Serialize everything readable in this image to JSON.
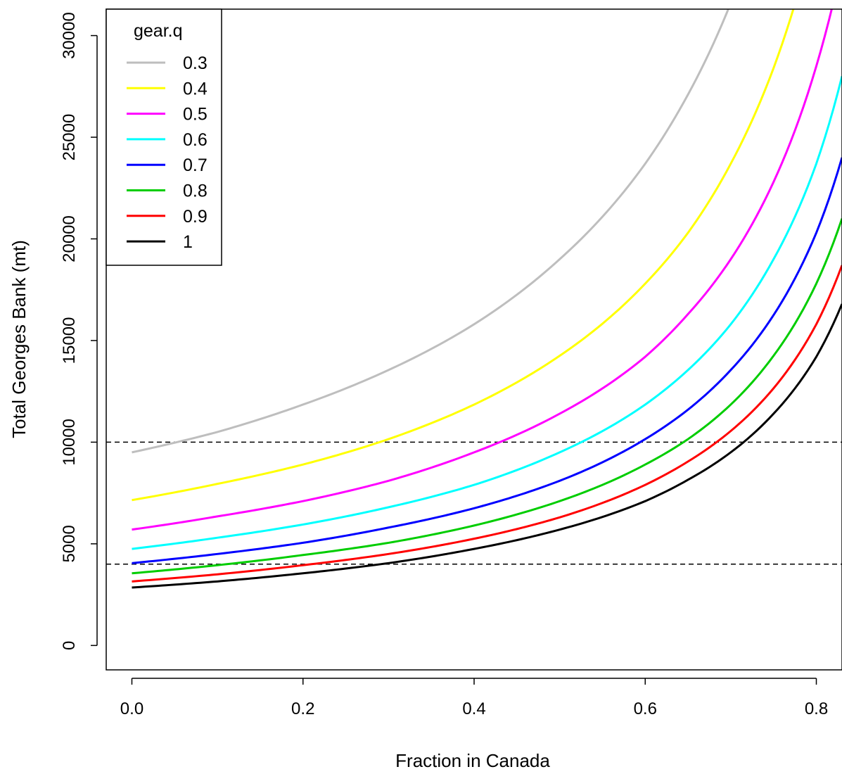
{
  "chart_data": {
    "type": "line",
    "title": "",
    "xlabel": "Fraction in Canada",
    "ylabel": "Total Georges Bank (mt)",
    "xlim": [
      -0.03,
      0.83
    ],
    "ylim": [
      -1200,
      31300
    ],
    "x_ticks": [
      0.0,
      0.2,
      0.4,
      0.6,
      0.8
    ],
    "x_tick_labels": [
      "0.0",
      "0.2",
      "0.4",
      "0.6",
      "0.8"
    ],
    "y_ticks": [
      0,
      5000,
      10000,
      15000,
      20000,
      25000,
      30000
    ],
    "y_tick_labels": [
      "0",
      "5000",
      "10000",
      "15000",
      "20000",
      "25000",
      "30000"
    ],
    "grid": false,
    "reference_lines": [
      {
        "y": 10000,
        "style": "dashed",
        "color": "#000000"
      },
      {
        "y": 4000,
        "style": "dashed",
        "color": "#000000"
      }
    ],
    "legend": {
      "title": "gear.q",
      "position": "top-left"
    },
    "x": [
      0.0,
      0.1,
      0.2,
      0.3,
      0.4,
      0.5,
      0.6,
      0.65,
      0.7,
      0.75,
      0.8,
      0.83
    ],
    "series": [
      {
        "name": "0.3",
        "color": "#bebebe",
        "values": [
          9500,
          10500,
          11850,
          13550,
          15800,
          19000,
          23700,
          27100,
          31600,
          null,
          null,
          null
        ]
      },
      {
        "name": "0.4",
        "color": "#ffff00",
        "values": [
          7150,
          7950,
          8900,
          10150,
          11850,
          14250,
          17800,
          20300,
          23700,
          28400,
          35500,
          null
        ]
      },
      {
        "name": "0.5",
        "color": "#ff00ff",
        "values": [
          5700,
          6350,
          7100,
          8100,
          9500,
          11400,
          14200,
          16300,
          19000,
          22800,
          28500,
          33500
        ]
      },
      {
        "name": "0.6",
        "color": "#00ffff",
        "values": [
          4750,
          5300,
          5950,
          6800,
          7900,
          9500,
          11850,
          13550,
          15800,
          19000,
          23700,
          28000
        ]
      },
      {
        "name": "0.7",
        "color": "#0000ff",
        "values": [
          4050,
          4500,
          5050,
          5800,
          6750,
          8100,
          10150,
          11600,
          13550,
          16250,
          20300,
          24000
        ]
      },
      {
        "name": "0.8",
        "color": "#00cd00",
        "values": [
          3550,
          3950,
          4450,
          5050,
          5900,
          7100,
          8900,
          10150,
          11850,
          14250,
          17800,
          21000
        ]
      },
      {
        "name": "0.9",
        "color": "#ff0000",
        "values": [
          3150,
          3500,
          3950,
          4500,
          5250,
          6300,
          7900,
          9050,
          10550,
          12650,
          15800,
          18700
        ]
      },
      {
        "name": "1",
        "color": "#000000",
        "values": [
          2850,
          3150,
          3550,
          4050,
          4750,
          5700,
          7100,
          8150,
          9500,
          11400,
          14200,
          16800
        ]
      }
    ]
  }
}
